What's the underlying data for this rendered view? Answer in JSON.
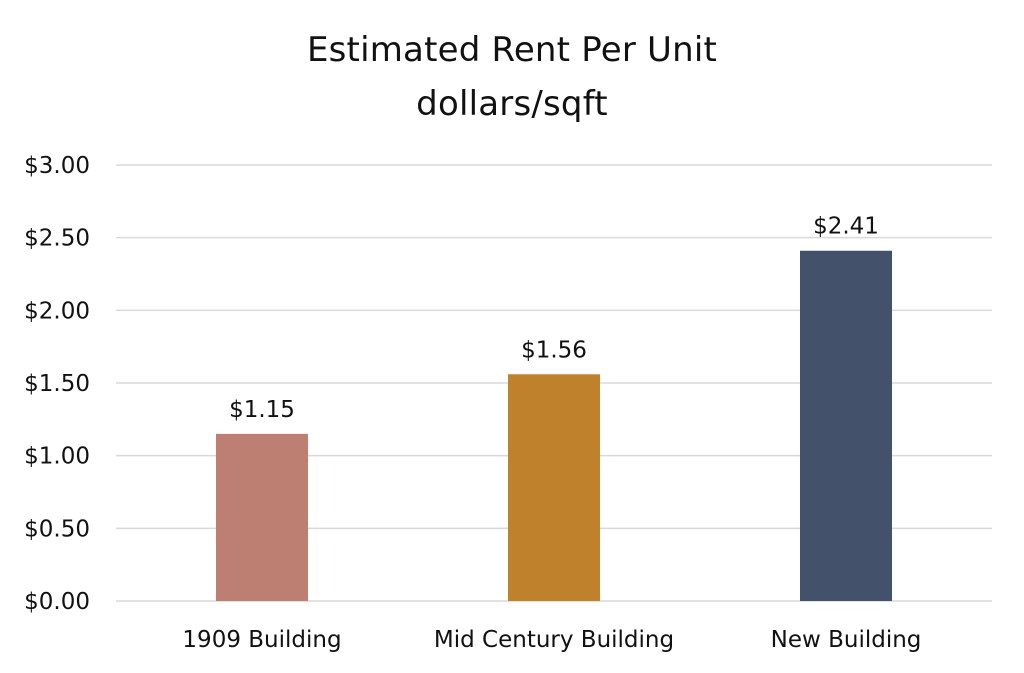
{
  "chart_data": {
    "type": "bar",
    "title": "Estimated Rent Per Unit",
    "subtitle": "dollars/sqft",
    "categories": [
      "1909 Building",
      "Mid Century Building",
      "New Building"
    ],
    "values": [
      1.15,
      1.56,
      2.41
    ],
    "value_labels": [
      "$1.15",
      "$1.56",
      "$2.41"
    ],
    "colors": [
      "#be7f73",
      "#bf812c",
      "#44516a"
    ],
    "ylim": [
      0,
      3
    ],
    "yticks": [
      0,
      0.5,
      1,
      1.5,
      2,
      2.5,
      3
    ],
    "ytick_labels": [
      "$0.00",
      "$0.50",
      "$1.00",
      "$1.50",
      "$2.00",
      "$2.50",
      "$3.00"
    ],
    "grid": true,
    "gridline_color": "#d9d9d9",
    "legend": "none"
  }
}
